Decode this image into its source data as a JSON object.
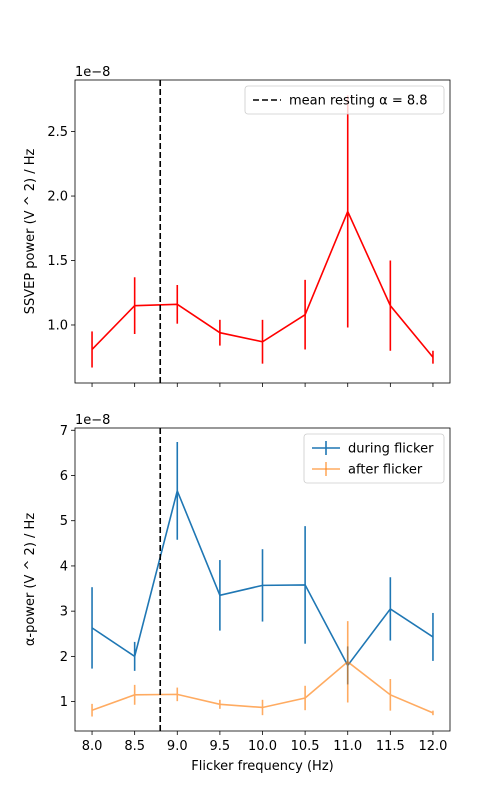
{
  "chart_data": [
    {
      "type": "line",
      "ylabel": "SSVEP power (V ^ 2) / Hz",
      "xlabel": "",
      "offset_text": "1e−8",
      "x": [
        8.0,
        8.5,
        9.0,
        9.5,
        10.0,
        10.5,
        11.0,
        11.5,
        12.0
      ],
      "xlim": [
        7.8,
        12.2
      ],
      "ylim": [
        0.55,
        2.9
      ],
      "y_ticks": [
        1.0,
        1.5,
        2.0,
        2.5
      ],
      "y_tick_labels": [
        "1.0",
        "1.5",
        "2.0",
        "2.5"
      ],
      "series": [
        {
          "color": "#ff0000",
          "opacity": 1,
          "values": [
            0.81,
            1.15,
            1.16,
            0.94,
            0.87,
            1.08,
            1.88,
            1.15,
            0.75
          ],
          "errors": [
            0.14,
            0.22,
            0.15,
            0.1,
            0.17,
            0.27,
            0.9,
            0.35,
            0.05
          ]
        }
      ],
      "vline": {
        "x": 8.8,
        "color": "#000000",
        "style": "dashed"
      },
      "legend": {
        "position": "top-right",
        "entries": [
          {
            "label": "mean resting α = 8.8",
            "color": "#000000",
            "kind": "dashed-line"
          }
        ]
      }
    },
    {
      "type": "line",
      "ylabel": "α-power (V ^ 2) / Hz",
      "xlabel": "Flicker frequency (Hz)",
      "offset_text": "1e−8",
      "x": [
        8.0,
        8.5,
        9.0,
        9.5,
        10.0,
        10.5,
        11.0,
        11.5,
        12.0
      ],
      "x_ticks": [
        8.0,
        8.5,
        9.0,
        9.5,
        10.0,
        10.5,
        11.0,
        11.5,
        12.0
      ],
      "x_tick_labels": [
        "8.0",
        "8.5",
        "9.0",
        "9.5",
        "10.0",
        "10.5",
        "11.0",
        "11.5",
        "12.0"
      ],
      "xlim": [
        7.8,
        12.2
      ],
      "ylim": [
        0.35,
        7.05
      ],
      "y_ticks": [
        1,
        2,
        3,
        4,
        5,
        6,
        7
      ],
      "y_tick_labels": [
        "1",
        "2",
        "3",
        "4",
        "5",
        "6",
        "7"
      ],
      "series": [
        {
          "name": "during flicker",
          "color": "#1f77b4",
          "opacity": 1,
          "values": [
            2.63,
            2.0,
            5.66,
            3.35,
            3.57,
            3.58,
            1.8,
            3.05,
            2.43
          ],
          "errors": [
            0.9,
            0.32,
            1.08,
            0.78,
            0.8,
            1.3,
            0.42,
            0.7,
            0.53
          ]
        },
        {
          "name": "after flicker",
          "color": "#ff7f0e",
          "opacity": 0.65,
          "values": [
            0.81,
            1.15,
            1.16,
            0.94,
            0.87,
            1.08,
            1.88,
            1.15,
            0.75
          ],
          "errors": [
            0.14,
            0.22,
            0.15,
            0.1,
            0.17,
            0.27,
            0.9,
            0.35,
            0.05
          ]
        }
      ],
      "vline": {
        "x": 8.8,
        "color": "#000000",
        "style": "dashed"
      },
      "legend": {
        "position": "top-right",
        "entries": [
          {
            "label": "during flicker",
            "color": "#1f77b4",
            "kind": "errorbar"
          },
          {
            "label": "after flicker",
            "color": "#ff7f0e",
            "kind": "errorbar"
          }
        ]
      }
    }
  ]
}
